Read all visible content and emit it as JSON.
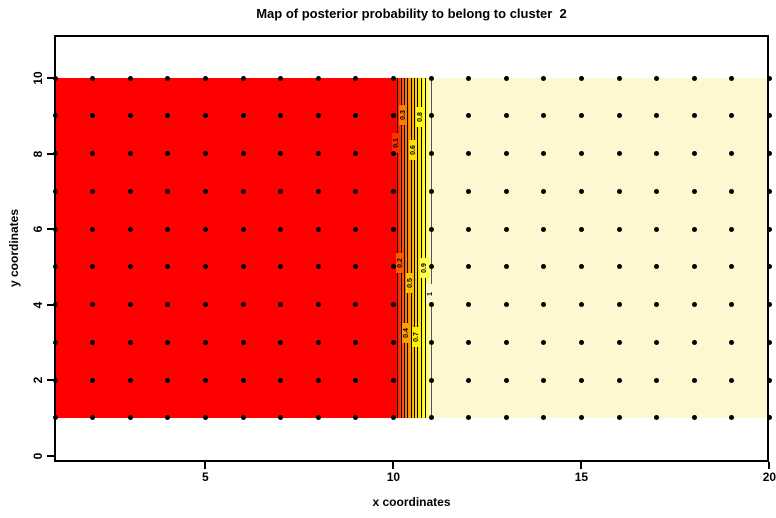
{
  "title": "Map of posterior probability to belong to cluster  2",
  "axes": {
    "x_label": "x coordinates",
    "y_label": "y coordinates",
    "x_tick_labels": [
      "5",
      "10",
      "15",
      "20"
    ],
    "y_tick_labels": [
      "0",
      "2",
      "4",
      "6",
      "8",
      "10"
    ]
  },
  "chart_data": {
    "type": "heatmap",
    "title": "Map of posterior probability to belong to cluster  2",
    "xlabel": "x coordinates",
    "ylabel": "y coordinates",
    "xlim": [
      1,
      20
    ],
    "ylim": [
      0,
      11
    ],
    "x_ticks": [
      5,
      10,
      15,
      20
    ],
    "y_ticks": [
      0,
      2,
      4,
      6,
      8,
      10
    ],
    "grid_points": {
      "x": [
        1,
        2,
        3,
        4,
        5,
        6,
        7,
        8,
        9,
        10,
        11,
        12,
        13,
        14,
        15,
        16,
        17,
        18,
        19,
        20
      ],
      "y": [
        1,
        2,
        3,
        4,
        5,
        6,
        7,
        8,
        9,
        10
      ],
      "marker": "filled-black-dot",
      "description": "observation locations at every integer (x,y) inside the mapped band y=1..10"
    },
    "regions": [
      {
        "x_range": [
          1,
          10
        ],
        "y_range": [
          1,
          10
        ],
        "posterior_probability": 0,
        "fill": "#FF0000",
        "meaning": "low probability of cluster 2"
      },
      {
        "x_range": [
          10,
          11
        ],
        "y_range": [
          1,
          10
        ],
        "posterior_probability": "gradient 0 to 1",
        "fill": "heat gradient red-orange-yellow"
      },
      {
        "x_range": [
          11,
          20
        ],
        "y_range": [
          1,
          10
        ],
        "posterior_probability": 1,
        "fill": "#FDF8D0",
        "meaning": "high probability of cluster 2"
      }
    ],
    "contours": {
      "levels": [
        0.1,
        0.2,
        0.3,
        0.4,
        0.5,
        0.6,
        0.7,
        0.8,
        0.9,
        1
      ],
      "lines": [
        {
          "level": "0.1",
          "x": 10.1,
          "label_y": 8.28,
          "label_bg": "#FF3000"
        },
        {
          "level": "0.2",
          "x": 10.19,
          "label_y": 5.1,
          "label_bg": "#FF5800"
        },
        {
          "level": "0.3",
          "x": 10.28,
          "label_y": 9.02,
          "label_bg": "#FF7C00"
        },
        {
          "level": "0.4",
          "x": 10.37,
          "label_y": 3.24,
          "label_bg": "#FF9E00"
        },
        {
          "level": "0.5",
          "x": 10.46,
          "label_y": 4.57,
          "label_bg": "#FFC200"
        },
        {
          "level": "0.6",
          "x": 10.55,
          "label_y": 8.09,
          "label_bg": "#FFE000"
        },
        {
          "level": "0.7",
          "x": 10.64,
          "label_y": 3.14,
          "label_bg": "#FFF400"
        },
        {
          "level": "0.8",
          "x": 10.73,
          "label_y": 8.97,
          "label_bg": "#FFFF10"
        },
        {
          "level": "0.9",
          "x": 10.83,
          "label_y": 4.97,
          "label_bg": "#FFFF55"
        },
        {
          "level": "1",
          "x": 11.0,
          "label_y": 4.28,
          "label_bg": "#FDF8D0"
        }
      ]
    },
    "colors": {
      "low": "#FF0000",
      "high": "#FDF8D0",
      "contour_line": "#000000",
      "final_contour_line": "#555555",
      "point_marker": "#000000",
      "gradient_palette": [
        "#FF0000",
        "#FF4000",
        "#FF7800",
        "#FFA800",
        "#FFD400",
        "#FFF600",
        "#FFFF30",
        "#FFFF90",
        "#FDF8D0"
      ]
    },
    "legend": "none",
    "grid": "off"
  }
}
